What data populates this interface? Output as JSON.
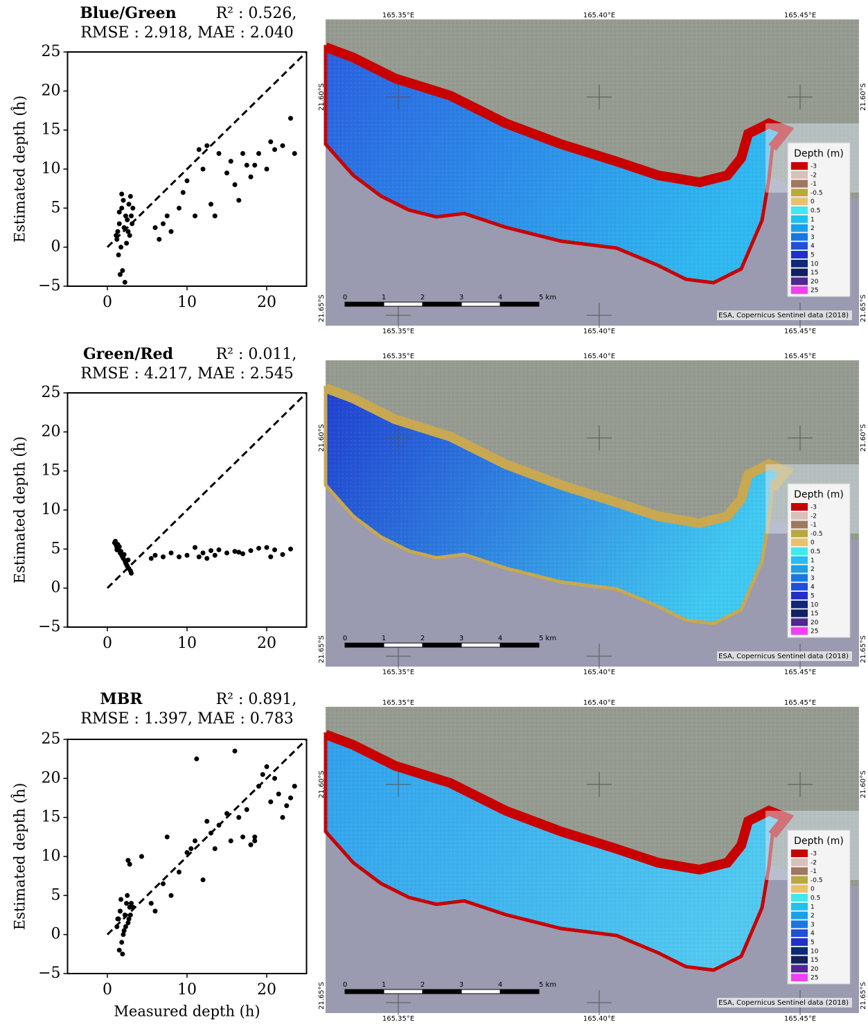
{
  "chart_data": [
    {
      "type": "scatter",
      "title": "Blue/Green",
      "subtitle": [
        "R² : 0.526,",
        "RMSE : 2.918, MAE : 2.040"
      ],
      "ylabel": "Estimated depth (ĥ)",
      "xlim": [
        -5,
        25
      ],
      "ylim": [
        -5,
        25
      ],
      "xticks": [
        0,
        10,
        20
      ],
      "yticks": [
        {
          "value": -5,
          "label": "−5"
        },
        0,
        5,
        10,
        15,
        20,
        25
      ],
      "reference_line": {
        "x": [
          0,
          25
        ],
        "values": [
          0,
          25
        ]
      },
      "series": [
        {
          "color": "#000000",
          "x": [
            1.2,
            1.5,
            1.8,
            2.0,
            2.3,
            2.6,
            2.9,
            3.2,
            1.4,
            1.7,
            2.1,
            2.5,
            2.8,
            3.0,
            1.6,
            2.2,
            1.9,
            2.4,
            1.3,
            1.1,
            1.5,
            1.8,
            2.7,
            3.1,
            6,
            6.5,
            7,
            7.5,
            8,
            9,
            10,
            11,
            12,
            12.5,
            13,
            14,
            15,
            15.5,
            16,
            17,
            17.5,
            18,
            19,
            20,
            21,
            22,
            23,
            23.5,
            13.5,
            16.5,
            9.5,
            11.5,
            20.5,
            18.5
          ],
          "values": [
            1,
            3,
            5,
            6,
            4,
            2,
            6.5,
            5,
            -1,
            0,
            2.5,
            3.5,
            1.5,
            4,
            -3.5,
            -4.5,
            -3,
            0.5,
            2,
            1.5,
            4.5,
            6.8,
            5.5,
            3,
            2.5,
            1,
            3,
            4,
            2,
            5,
            8.5,
            4,
            10,
            13,
            5.5,
            12,
            9.5,
            11,
            8,
            12,
            10.5,
            9,
            12,
            10,
            12.5,
            13,
            16.5,
            12,
            4,
            6,
            7,
            12.5,
            13.5,
            10.5
          ]
        }
      ]
    },
    {
      "type": "scatter",
      "title": "Green/Red",
      "subtitle": [
        "R² : 0.011,",
        "RMSE : 4.217, MAE : 2.545"
      ],
      "ylabel": "Estimated depth (ĥ)",
      "xlim": [
        -5,
        25
      ],
      "ylim": [
        -5,
        25
      ],
      "xticks": [
        0,
        10,
        20
      ],
      "yticks": [
        {
          "value": -5,
          "label": "−5"
        },
        0,
        5,
        10,
        15,
        20,
        25
      ],
      "reference_line": {
        "x": [
          0,
          25
        ],
        "values": [
          0,
          25
        ]
      },
      "series": [
        {
          "color": "#000000",
          "x": [
            0.9,
            1.0,
            1.1,
            1.2,
            1.3,
            1.4,
            1.5,
            1.6,
            1.7,
            1.8,
            1.9,
            2.0,
            2.1,
            2.2,
            2.3,
            2.4,
            2.5,
            2.7,
            2.9,
            3.0,
            1.2,
            1.5,
            2.6,
            5.5,
            6,
            7,
            8,
            9,
            10,
            11,
            11.5,
            12,
            13,
            13.5,
            14,
            15,
            16,
            17,
            18,
            19,
            20,
            21,
            22,
            23,
            12.5,
            16.5,
            20.5
          ],
          "values": [
            5.8,
            6.0,
            5.5,
            5.2,
            5.6,
            5.0,
            4.8,
            4.5,
            4.7,
            4.2,
            4.0,
            3.8,
            4.3,
            3.5,
            3.2,
            3.0,
            2.8,
            2.5,
            2.2,
            1.9,
            4.9,
            5.3,
            3.6,
            3.8,
            4.2,
            4.0,
            4.5,
            4.0,
            4.2,
            5.2,
            4.0,
            4.5,
            4.8,
            4.2,
            4.9,
            4.5,
            4.7,
            4.4,
            4.8,
            5.1,
            5.2,
            4.9,
            4.3,
            5.0,
            3.8,
            4.6,
            4.0
          ]
        }
      ]
    },
    {
      "type": "scatter",
      "title": "MBR",
      "subtitle": [
        "R² : 0.891,",
        "RMSE : 1.397, MAE : 0.783"
      ],
      "ylabel": "Estimated depth (ĥ)",
      "xlabel": "Measured depth (h)",
      "xlim": [
        -5,
        25
      ],
      "ylim": [
        -5,
        25
      ],
      "xticks": [
        0,
        10,
        20
      ],
      "yticks": [
        {
          "value": -5,
          "label": "−5"
        },
        0,
        5,
        10,
        15,
        20,
        25
      ],
      "reference_line": {
        "x": [
          0,
          25
        ],
        "values": [
          0,
          25
        ]
      },
      "series": [
        {
          "color": "#000000",
          "x": [
            1.2,
            1.4,
            1.6,
            1.8,
            2.0,
            2.2,
            2.4,
            2.6,
            2.8,
            3.0,
            1.5,
            1.9,
            2.3,
            2.7,
            1.7,
            2.1,
            1.3,
            1.6,
            2.5,
            2.9,
            3.2,
            2.6,
            2.8,
            4.3,
            5.5,
            6,
            7,
            7.5,
            8,
            9,
            10,
            10.5,
            11,
            11.2,
            12,
            12.5,
            13,
            14,
            15,
            15.5,
            16,
            16.5,
            17,
            18,
            18.5,
            19,
            20,
            20.5,
            21,
            21.5,
            22,
            23,
            23.5,
            13.5,
            17.5,
            19.5,
            22.5,
            18.5
          ],
          "values": [
            1,
            2,
            3,
            -1,
            0,
            2.5,
            4,
            1.5,
            3.5,
            4,
            -2,
            -2.5,
            1,
            2,
            4.5,
            0.5,
            2,
            3,
            5,
            2.5,
            3.5,
            9.5,
            9,
            10,
            4,
            3,
            6.5,
            12.5,
            5,
            8,
            10.5,
            11,
            12,
            22.5,
            7,
            14.5,
            13,
            14,
            15.5,
            12,
            23.5,
            15,
            12.5,
            11.5,
            12,
            19,
            21.5,
            17,
            20,
            18,
            15,
            17.5,
            19,
            11,
            16,
            20.5,
            16.5,
            12.5
          ]
        }
      ]
    }
  ],
  "map": {
    "lon_labels": [
      "165.35°E",
      "165.40°E",
      "165.45°E"
    ],
    "lat_labels": [
      "21.60°S",
      "21.65°S"
    ],
    "legend_title": "Depth (m)",
    "legend": [
      {
        "label": "-3",
        "color": "#c80000"
      },
      {
        "label": "-2",
        "color": "#d9c0b8"
      },
      {
        "label": "-1",
        "color": "#a07860"
      },
      {
        "label": "-0.5",
        "color": "#b8a840"
      },
      {
        "label": "0",
        "color": "#e8c070"
      },
      {
        "label": "0.5",
        "color": "#40e8f0"
      },
      {
        "label": "1",
        "color": "#20c0f0"
      },
      {
        "label": "2",
        "color": "#1aa0e8"
      },
      {
        "label": "3",
        "color": "#1878e0"
      },
      {
        "label": "4",
        "color": "#2050d8"
      },
      {
        "label": "5",
        "color": "#2030c8"
      },
      {
        "label": "10",
        "color": "#102878"
      },
      {
        "label": "15",
        "color": "#102060"
      },
      {
        "label": "20",
        "color": "#502890"
      },
      {
        "label": "25",
        "color": "#f040f0"
      }
    ],
    "scale_labels": [
      "0",
      "1",
      "2",
      "3",
      "4",
      "5 km"
    ],
    "attribution": "ESA, Copernicus Sentinel data (2018)"
  },
  "maps": [
    {
      "shore_color": "#c80000",
      "lagoon_colors": [
        "#2a60e0",
        "#30b8f0"
      ]
    },
    {
      "shore_color": "#c8a850",
      "lagoon_colors": [
        "#2040d0",
        "#40c8f0"
      ]
    },
    {
      "shore_color": "#c80000",
      "lagoon_colors": [
        "#30a0ec",
        "#50c8f0"
      ]
    }
  ]
}
